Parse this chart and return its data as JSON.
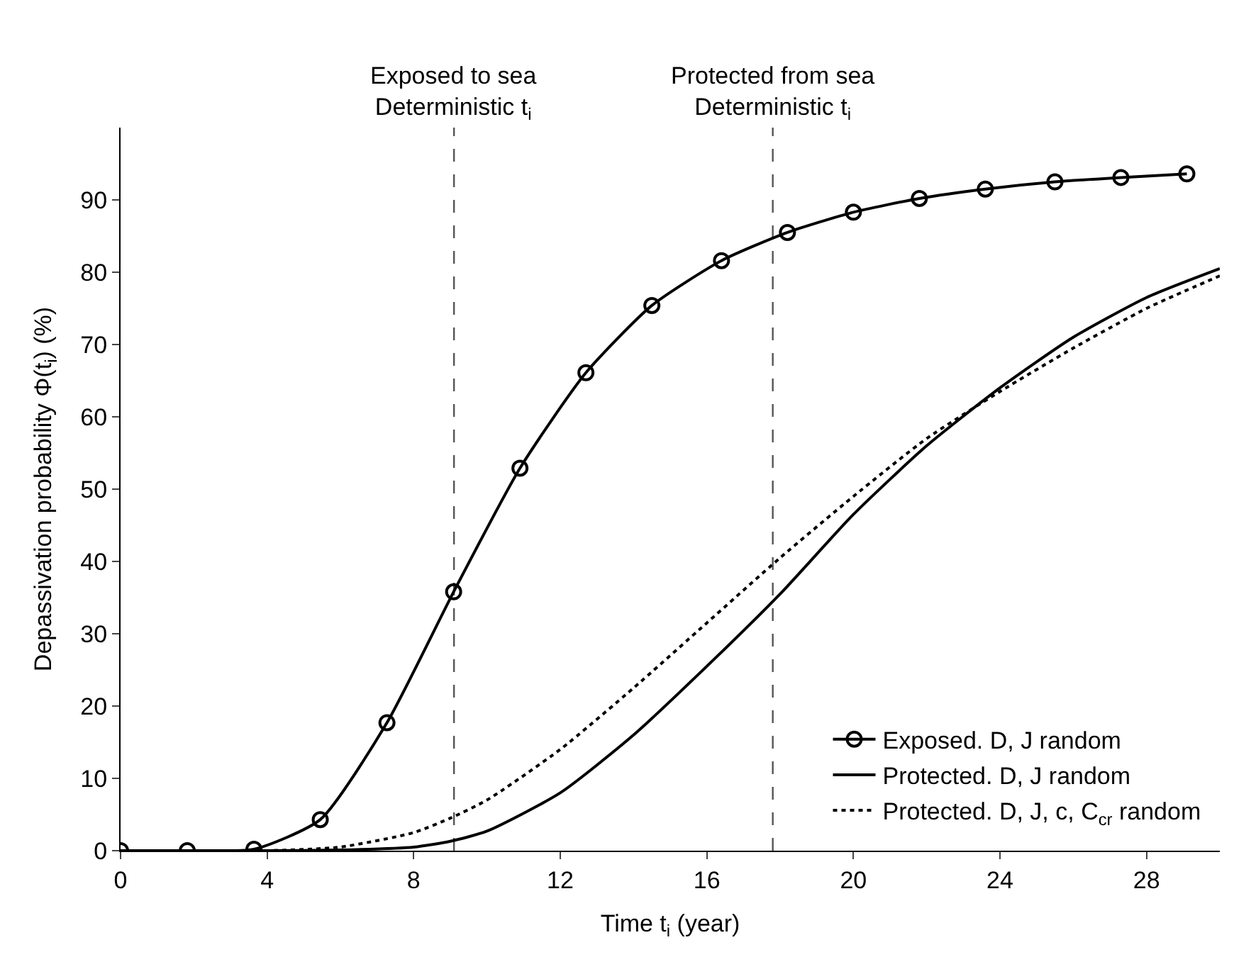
{
  "chart_data": {
    "type": "line",
    "xlabel": "Time t$_{i}$ (year)",
    "ylabel": "Depassivation probability Φ(t$_{i}$) (%)",
    "xlim": [
      0,
      30
    ],
    "ylim": [
      0,
      100
    ],
    "xticks": [
      0,
      4,
      8,
      12,
      16,
      20,
      24,
      28
    ],
    "yticks": [
      0,
      10,
      20,
      30,
      40,
      50,
      60,
      70,
      80,
      90
    ],
    "grid": false,
    "legend": "bottom right",
    "series": [
      {
        "name": "Exposed. D, J random",
        "color": "#000000",
        "marker": "circle",
        "line_style": "solid",
        "x": [
          0,
          1.82,
          3.64,
          5.45,
          7.27,
          9.09,
          10.9,
          12.7,
          14.5,
          16.4,
          18.2,
          20.0,
          21.8,
          23.6,
          25.5,
          27.3,
          29.1
        ],
        "values": [
          0,
          0,
          0.2,
          4.3,
          17.7,
          35.8,
          52.9,
          66.1,
          75.4,
          81.6,
          85.5,
          88.3,
          90.2,
          91.5,
          92.5,
          93.1,
          93.6
        ]
      },
      {
        "name": "Protected. D, J random",
        "color": "#000000",
        "marker": "none",
        "line_style": "solid",
        "x": [
          0,
          4,
          6,
          8,
          9,
          10,
          12,
          14,
          16,
          18,
          20,
          22,
          24,
          26,
          28,
          30
        ],
        "values": [
          0,
          0,
          0.1,
          0.5,
          1.3,
          2.7,
          8,
          16,
          25.5,
          35.5,
          46.5,
          56,
          64,
          71,
          76.5,
          80.5
        ]
      },
      {
        "name": "Protected. D, J, c, C$_{cr}$ random",
        "color": "#000000",
        "marker": "none",
        "line_style": "dotted",
        "x": [
          0,
          4,
          6,
          8,
          9,
          10,
          12,
          14,
          16,
          18,
          20,
          22,
          24,
          26,
          28,
          30
        ],
        "values": [
          0,
          0,
          0.5,
          2.5,
          4.5,
          7,
          14,
          22.5,
          31.5,
          40.5,
          49,
          57,
          63.5,
          69.5,
          75,
          79.5
        ]
      }
    ],
    "ref_lines": [
      {
        "axis": "x",
        "value": 9.1,
        "label": "Exposed to sea\nDeterministic t$_{i}$",
        "color": "#555555",
        "line_style": "dashed"
      },
      {
        "axis": "x",
        "value": 17.8,
        "label": "Protected from sea\nDeterministic t$_{i}$",
        "color": "#555555",
        "line_style": "dashed"
      }
    ]
  }
}
